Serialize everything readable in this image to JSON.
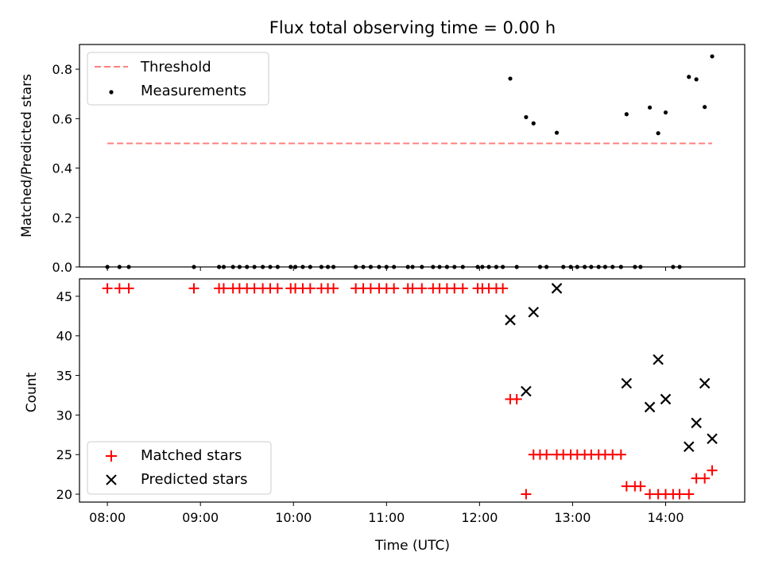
{
  "title": "Flux total observing time = 0.00 h",
  "chart_data": [
    {
      "type": "scatter",
      "ylabel": "Matched/Predicted stars",
      "xlabel": "",
      "xlim": [
        7.7,
        14.85
      ],
      "ylim": [
        0,
        0.9
      ],
      "yticks": [
        0.0,
        0.2,
        0.4,
        0.6,
        0.8
      ],
      "ytick_labels": [
        "0.0",
        "0.2",
        "0.4",
        "0.6",
        "0.8"
      ],
      "grid": false,
      "legend": {
        "placement": "upper-left",
        "entries": [
          "Threshold",
          "Measurements"
        ]
      },
      "threshold": {
        "name": "Threshold",
        "y": 0.5,
        "x_range": [
          8.0,
          14.5
        ],
        "color": "#ff8080",
        "style": "dashed"
      },
      "series": [
        {
          "name": "Measurements",
          "color": "#000000",
          "marker": "dot",
          "points": [
            [
              8.0,
              0
            ],
            [
              8.13,
              0
            ],
            [
              8.23,
              0
            ],
            [
              8.93,
              0
            ],
            [
              9.2,
              0
            ],
            [
              9.25,
              0
            ],
            [
              9.35,
              0
            ],
            [
              9.42,
              0
            ],
            [
              9.5,
              0
            ],
            [
              9.58,
              0
            ],
            [
              9.67,
              0
            ],
            [
              9.75,
              0
            ],
            [
              9.83,
              0
            ],
            [
              9.97,
              0
            ],
            [
              10.02,
              0
            ],
            [
              10.1,
              0
            ],
            [
              10.18,
              0
            ],
            [
              10.3,
              0
            ],
            [
              10.37,
              0
            ],
            [
              10.43,
              0
            ],
            [
              10.67,
              0
            ],
            [
              10.75,
              0
            ],
            [
              10.83,
              0
            ],
            [
              10.92,
              0
            ],
            [
              11.0,
              0
            ],
            [
              11.08,
              0
            ],
            [
              11.23,
              0
            ],
            [
              11.28,
              0
            ],
            [
              11.38,
              0
            ],
            [
              11.5,
              0
            ],
            [
              11.57,
              0
            ],
            [
              11.65,
              0
            ],
            [
              11.73,
              0
            ],
            [
              11.82,
              0
            ],
            [
              11.98,
              0
            ],
            [
              12.03,
              0
            ],
            [
              12.1,
              0
            ],
            [
              12.18,
              0
            ],
            [
              12.25,
              0
            ],
            [
              12.33,
              0.762
            ],
            [
              12.4,
              0
            ],
            [
              12.5,
              0.606
            ],
            [
              12.58,
              0.581
            ],
            [
              12.65,
              0
            ],
            [
              12.72,
              0
            ],
            [
              12.83,
              0.543
            ],
            [
              12.9,
              0
            ],
            [
              12.98,
              0
            ],
            [
              13.05,
              0
            ],
            [
              13.13,
              0
            ],
            [
              13.2,
              0
            ],
            [
              13.28,
              0
            ],
            [
              13.35,
              0
            ],
            [
              13.43,
              0
            ],
            [
              13.52,
              0
            ],
            [
              13.58,
              0.618
            ],
            [
              13.67,
              0
            ],
            [
              13.73,
              0
            ],
            [
              13.83,
              0.645
            ],
            [
              13.92,
              0.541
            ],
            [
              14.0,
              0.625
            ],
            [
              14.08,
              0
            ],
            [
              14.15,
              0
            ],
            [
              14.25,
              0.769
            ],
            [
              14.33,
              0.759
            ],
            [
              14.42,
              0.647
            ],
            [
              14.5,
              0.852
            ]
          ]
        }
      ]
    },
    {
      "type": "scatter",
      "ylabel": "Count",
      "xlabel": "Time (UTC)",
      "xlim": [
        7.7,
        14.85
      ],
      "ylim": [
        19,
        47.2
      ],
      "xticks": [
        8,
        9,
        10,
        11,
        12,
        13,
        14
      ],
      "xtick_labels": [
        "08:00",
        "09:00",
        "10:00",
        "11:00",
        "12:00",
        "13:00",
        "14:00"
      ],
      "yticks": [
        20,
        25,
        30,
        35,
        40,
        45
      ],
      "ytick_labels": [
        "20",
        "25",
        "30",
        "35",
        "40",
        "45"
      ],
      "grid": false,
      "legend": {
        "placement": "lower-left",
        "entries": [
          "Matched stars",
          "Predicted stars"
        ]
      },
      "series": [
        {
          "name": "Matched stars",
          "color": "#ff0000",
          "marker": "plus",
          "points": [
            [
              8.0,
              46
            ],
            [
              8.13,
              46
            ],
            [
              8.23,
              46
            ],
            [
              8.93,
              46
            ],
            [
              9.2,
              46
            ],
            [
              9.25,
              46
            ],
            [
              9.35,
              46
            ],
            [
              9.42,
              46
            ],
            [
              9.5,
              46
            ],
            [
              9.58,
              46
            ],
            [
              9.67,
              46
            ],
            [
              9.75,
              46
            ],
            [
              9.83,
              46
            ],
            [
              9.97,
              46
            ],
            [
              10.02,
              46
            ],
            [
              10.1,
              46
            ],
            [
              10.18,
              46
            ],
            [
              10.3,
              46
            ],
            [
              10.37,
              46
            ],
            [
              10.43,
              46
            ],
            [
              10.67,
              46
            ],
            [
              10.75,
              46
            ],
            [
              10.83,
              46
            ],
            [
              10.92,
              46
            ],
            [
              11.0,
              46
            ],
            [
              11.08,
              46
            ],
            [
              11.23,
              46
            ],
            [
              11.28,
              46
            ],
            [
              11.38,
              46
            ],
            [
              11.5,
              46
            ],
            [
              11.57,
              46
            ],
            [
              11.65,
              46
            ],
            [
              11.73,
              46
            ],
            [
              11.82,
              46
            ],
            [
              11.98,
              46
            ],
            [
              12.03,
              46
            ],
            [
              12.1,
              46
            ],
            [
              12.18,
              46
            ],
            [
              12.25,
              46
            ],
            [
              12.33,
              32
            ],
            [
              12.4,
              32
            ],
            [
              12.5,
              20
            ],
            [
              12.58,
              25
            ],
            [
              12.65,
              25
            ],
            [
              12.72,
              25
            ],
            [
              12.83,
              25
            ],
            [
              12.9,
              25
            ],
            [
              12.98,
              25
            ],
            [
              13.05,
              25
            ],
            [
              13.13,
              25
            ],
            [
              13.2,
              25
            ],
            [
              13.28,
              25
            ],
            [
              13.35,
              25
            ],
            [
              13.43,
              25
            ],
            [
              13.52,
              25
            ],
            [
              13.58,
              21
            ],
            [
              13.67,
              21
            ],
            [
              13.73,
              21
            ],
            [
              13.83,
              20
            ],
            [
              13.92,
              20
            ],
            [
              14.0,
              20
            ],
            [
              14.08,
              20
            ],
            [
              14.15,
              20
            ],
            [
              14.25,
              20
            ],
            [
              14.33,
              22
            ],
            [
              14.42,
              22
            ],
            [
              14.5,
              23
            ]
          ]
        },
        {
          "name": "Predicted stars",
          "color": "#000000",
          "marker": "x",
          "points": [
            [
              12.33,
              42
            ],
            [
              12.5,
              33
            ],
            [
              12.58,
              43
            ],
            [
              12.83,
              46
            ],
            [
              13.58,
              34
            ],
            [
              13.83,
              31
            ],
            [
              13.92,
              37
            ],
            [
              14.0,
              32
            ],
            [
              14.25,
              26
            ],
            [
              14.33,
              29
            ],
            [
              14.42,
              34
            ],
            [
              14.5,
              27
            ]
          ]
        }
      ]
    }
  ]
}
